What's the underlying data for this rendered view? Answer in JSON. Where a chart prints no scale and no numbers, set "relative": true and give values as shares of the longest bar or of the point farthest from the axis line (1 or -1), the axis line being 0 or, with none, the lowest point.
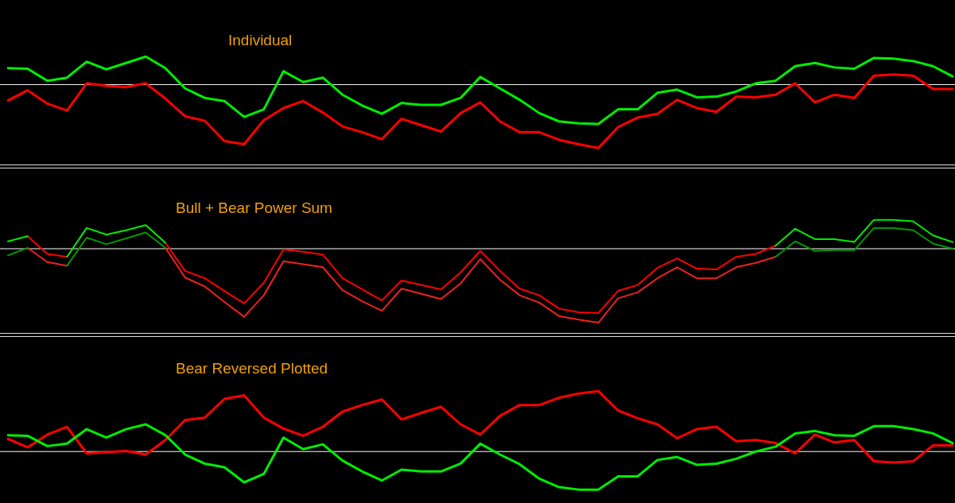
{
  "chart_data": [
    {
      "type": "line",
      "title": "Individual",
      "relative": true,
      "legend": false,
      "categories": [
        null,
        null,
        null,
        null,
        null,
        null,
        null,
        null,
        null,
        null,
        null,
        null,
        null,
        null,
        null,
        null,
        null,
        null,
        null,
        null,
        null,
        null,
        null,
        null,
        null,
        null,
        null,
        null,
        null,
        null,
        null,
        null,
        null,
        null,
        null,
        null,
        null,
        null,
        null,
        null,
        null,
        null,
        null,
        null,
        null,
        null,
        null,
        null,
        null
      ],
      "series": [
        {
          "color": "#00ee00",
          "values": [
            0.26,
            0.25,
            0.06,
            0.11,
            0.36,
            0.24,
            0.34,
            0.44,
            0.26,
            -0.06,
            -0.21,
            -0.26,
            -0.51,
            -0.39,
            0.21,
            0.04,
            0.11,
            -0.16,
            -0.33,
            -0.46,
            -0.29,
            -0.32,
            -0.32,
            -0.21,
            0.12,
            -0.06,
            -0.24,
            -0.45,
            -0.58,
            -0.61,
            -0.62,
            -0.39,
            -0.39,
            -0.13,
            -0.08,
            -0.2,
            -0.19,
            -0.11,
            0.02,
            0.06,
            0.29,
            0.34,
            0.27,
            0.25,
            0.42,
            0.41,
            0.37,
            0.29,
            0.13
          ]
        },
        {
          "color": "#ff0000",
          "values": [
            -0.25,
            -0.09,
            -0.3,
            -0.41,
            0.02,
            -0.02,
            -0.04,
            0.02,
            -0.22,
            -0.5,
            -0.57,
            -0.89,
            -0.94,
            -0.56,
            -0.37,
            -0.26,
            -0.44,
            -0.66,
            -0.75,
            -0.86,
            -0.54,
            -0.64,
            -0.74,
            -0.45,
            -0.28,
            -0.58,
            -0.75,
            -0.75,
            -0.87,
            -0.94,
            -1,
            -0.67,
            -0.52,
            -0.46,
            -0.24,
            -0.37,
            -0.43,
            -0.19,
            -0.2,
            -0.16,
            0.02,
            -0.28,
            -0.16,
            -0.21,
            0.14,
            0.16,
            0.14,
            -0.07,
            -0.07
          ]
        }
      ]
    },
    {
      "type": "line",
      "title": "Bull + Bear Power Sum",
      "relative": true,
      "legend": false,
      "categories": [
        null,
        null,
        null,
        null,
        null,
        null,
        null,
        null,
        null,
        null,
        null,
        null,
        null,
        null,
        null,
        null,
        null,
        null,
        null,
        null,
        null,
        null,
        null,
        null,
        null,
        null,
        null,
        null,
        null,
        null,
        null,
        null,
        null,
        null,
        null,
        null,
        null,
        null,
        null,
        null,
        null,
        null,
        null,
        null,
        null,
        null,
        null,
        null,
        null
      ],
      "series": [
        {
          "color": "#00ee00",
          "values": [
            0.1,
            0.17,
            null,
            -0.11,
            0.28,
            0.19,
            0.25,
            0.32,
            0.08,
            null,
            null,
            null,
            null,
            null,
            null,
            null,
            null,
            null,
            null,
            null,
            null,
            null,
            null,
            null,
            null,
            null,
            null,
            null,
            null,
            null,
            null,
            null,
            null,
            null,
            null,
            null,
            null,
            null,
            null,
            0.04,
            0.27,
            0.13,
            0.13,
            0.09,
            0.39,
            0.39,
            0.37,
            0.18,
            0.09
          ]
        },
        {
          "color": "#ff0000",
          "values": [
            null,
            0.17,
            -0.07,
            -0.11,
            null,
            null,
            null,
            null,
            0.08,
            -0.3,
            -0.4,
            -0.57,
            -0.74,
            -0.46,
            -0.01,
            -0.04,
            -0.08,
            -0.4,
            -0.55,
            -0.7,
            -0.43,
            -0.49,
            -0.55,
            -0.32,
            -0.03,
            -0.3,
            -0.54,
            -0.63,
            -0.81,
            -0.86,
            -0.87,
            -0.57,
            -0.49,
            -0.26,
            -0.13,
            -0.27,
            -0.28,
            -0.11,
            -0.07,
            0.04,
            null,
            null,
            null,
            null,
            null,
            null,
            null,
            null,
            null
          ]
        },
        {
          "color": "#009a00",
          "values": [
            -0.09,
            0.01,
            null,
            -0.23,
            0.15,
            0.06,
            0.14,
            0.22,
            0.01,
            null,
            null,
            null,
            null,
            null,
            null,
            null,
            null,
            null,
            null,
            null,
            null,
            null,
            null,
            null,
            null,
            null,
            null,
            null,
            null,
            null,
            null,
            null,
            null,
            null,
            null,
            null,
            null,
            null,
            null,
            -0.11,
            0.1,
            -0.03,
            -0.02,
            -0.02,
            0.28,
            0.28,
            0.25,
            0.07,
            0
          ]
        },
        {
          "color": "#f02020",
          "values": [
            null,
            0.01,
            -0.18,
            -0.23,
            null,
            null,
            null,
            null,
            0.01,
            -0.39,
            -0.51,
            -0.72,
            -0.92,
            -0.63,
            -0.17,
            -0.21,
            -0.25,
            -0.56,
            -0.71,
            -0.84,
            -0.54,
            -0.61,
            -0.68,
            -0.47,
            -0.14,
            -0.42,
            -0.63,
            -0.73,
            -0.91,
            -0.96,
            -1,
            -0.67,
            -0.59,
            -0.4,
            -0.25,
            -0.4,
            -0.4,
            -0.25,
            -0.19,
            -0.11,
            null,
            null,
            null,
            null,
            null,
            null,
            null,
            null,
            null
          ]
        }
      ]
    },
    {
      "type": "line",
      "title": "Bear Reversed Plotted",
      "relative": true,
      "legend": false,
      "categories": [
        null,
        null,
        null,
        null,
        null,
        null,
        null,
        null,
        null,
        null,
        null,
        null,
        null,
        null,
        null,
        null,
        null,
        null,
        null,
        null,
        null,
        null,
        null,
        null,
        null,
        null,
        null,
        null,
        null,
        null,
        null,
        null,
        null,
        null,
        null,
        null,
        null,
        null,
        null,
        null,
        null,
        null,
        null,
        null,
        null,
        null,
        null,
        null,
        null
      ],
      "series": [
        {
          "color": "#00ee00",
          "values": [
            0.27,
            0.26,
            0.09,
            0.13,
            0.37,
            0.23,
            0.37,
            0.45,
            0.27,
            -0.05,
            -0.2,
            -0.26,
            -0.51,
            -0.37,
            0.23,
            0.04,
            0.12,
            -0.15,
            -0.33,
            -0.48,
            -0.3,
            -0.33,
            -0.33,
            -0.2,
            0.13,
            -0.05,
            -0.21,
            -0.45,
            -0.59,
            -0.63,
            -0.63,
            -0.41,
            -0.41,
            -0.14,
            -0.09,
            -0.22,
            -0.2,
            -0.12,
            0,
            0.08,
            0.3,
            0.34,
            0.27,
            0.26,
            0.42,
            0.42,
            0.37,
            0.3,
            0.14
          ]
        },
        {
          "color": "#ff0000",
          "values": [
            0.21,
            0.07,
            0.28,
            0.41,
            -0.03,
            -0.01,
            0.01,
            -0.05,
            0.19,
            0.52,
            0.56,
            0.87,
            0.93,
            0.56,
            0.38,
            0.26,
            0.41,
            0.66,
            0.77,
            0.86,
            0.53,
            0.64,
            0.74,
            0.45,
            0.28,
            0.59,
            0.77,
            0.77,
            0.89,
            0.96,
            1,
            0.68,
            0.55,
            0.45,
            0.22,
            0.37,
            0.41,
            0.17,
            0.19,
            0.14,
            -0.03,
            0.28,
            0.15,
            0.19,
            -0.16,
            -0.18,
            -0.16,
            0.1,
            0.1
          ]
        }
      ]
    }
  ]
}
